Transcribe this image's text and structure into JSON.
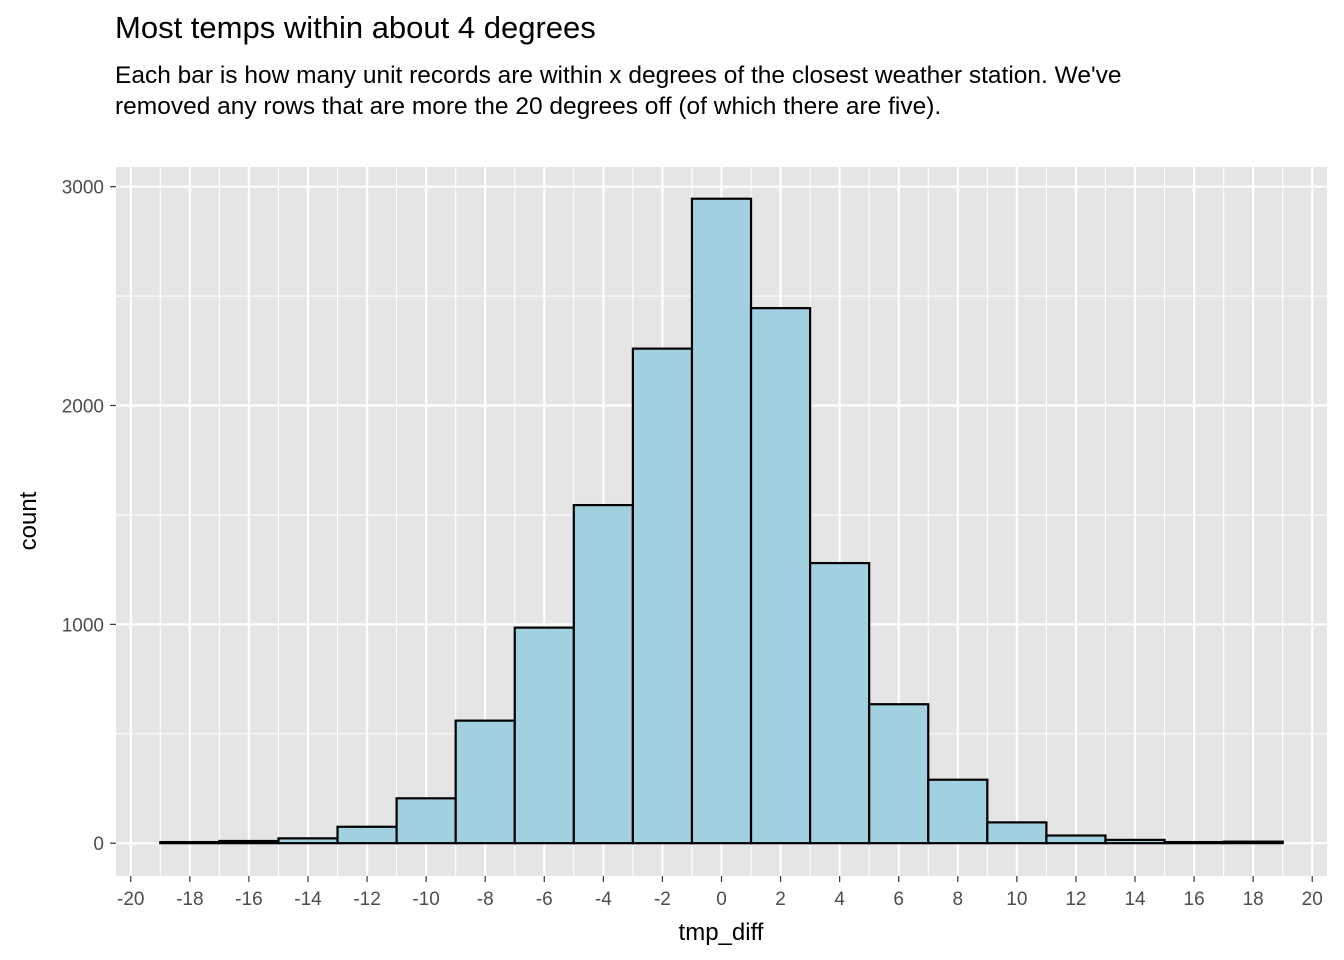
{
  "chart_data": {
    "type": "bar",
    "title": "Most temps within about 4 degrees",
    "subtitle": "Each bar is how many unit records are within x degrees of the closest weather station. We've removed any rows that are more the 20 degrees off (of which there are five).",
    "xlabel": "tmp_diff",
    "ylabel": "count",
    "bin_width": 2,
    "bins": [
      {
        "center": -18,
        "count": 5
      },
      {
        "center": -16,
        "count": 10
      },
      {
        "center": -14,
        "count": 22
      },
      {
        "center": -12,
        "count": 75
      },
      {
        "center": -10,
        "count": 205
      },
      {
        "center": -8,
        "count": 560
      },
      {
        "center": -6,
        "count": 985
      },
      {
        "center": -4,
        "count": 1545
      },
      {
        "center": -2,
        "count": 2260
      },
      {
        "center": 0,
        "count": 2945
      },
      {
        "center": 2,
        "count": 2445
      },
      {
        "center": 4,
        "count": 1280
      },
      {
        "center": 6,
        "count": 635
      },
      {
        "center": 8,
        "count": 290
      },
      {
        "center": 10,
        "count": 95
      },
      {
        "center": 12,
        "count": 35
      },
      {
        "center": 14,
        "count": 15
      },
      {
        "center": 16,
        "count": 5
      },
      {
        "center": 18,
        "count": 7
      }
    ],
    "xlim": [
      -20.5,
      20.5
    ],
    "ylim": [
      -150,
      3090
    ],
    "xticks": [
      -20,
      -18,
      -16,
      -14,
      -12,
      -10,
      -8,
      -6,
      -4,
      -2,
      0,
      2,
      4,
      6,
      8,
      10,
      12,
      14,
      16,
      18,
      20
    ],
    "yticks": [
      0,
      1000,
      2000,
      3000
    ],
    "grid": true,
    "colors": {
      "panel_background": "#e5e5e5",
      "grid": "#ffffff",
      "bar_fill": "#a1d0e1",
      "bar_outline": "#000000"
    }
  }
}
